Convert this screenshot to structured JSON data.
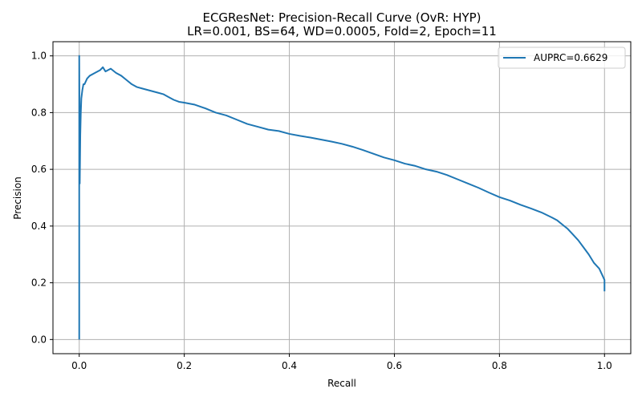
{
  "chart_data": {
    "type": "line",
    "title": "ECGResNet: Precision-Recall Curve (OvR: HYP)",
    "subtitle": "LR=0.001, BS=64, WD=0.0005, Fold=2, Epoch=11",
    "xlabel": "Recall",
    "ylabel": "Precision",
    "xlim": [
      -0.05,
      1.05
    ],
    "ylim": [
      -0.05,
      1.05
    ],
    "xticks": [
      0.0,
      0.2,
      0.4,
      0.6,
      0.8,
      1.0
    ],
    "xtick_labels": [
      "0.0",
      "0.2",
      "0.4",
      "0.6",
      "0.8",
      "1.0"
    ],
    "yticks": [
      0.0,
      0.2,
      0.4,
      0.6,
      0.8,
      1.0
    ],
    "ytick_labels": [
      "0.0",
      "0.2",
      "0.4",
      "0.6",
      "0.8",
      "1.0"
    ],
    "grid": true,
    "legend_position": "top-right",
    "series": [
      {
        "name": "AUPRC=0.6629",
        "color": "#1f77b4",
        "x": [
          0.0,
          0.0,
          0.001,
          0.002,
          0.003,
          0.004,
          0.006,
          0.008,
          0.01,
          0.015,
          0.02,
          0.03,
          0.04,
          0.045,
          0.05,
          0.06,
          0.07,
          0.08,
          0.09,
          0.1,
          0.11,
          0.12,
          0.13,
          0.14,
          0.15,
          0.16,
          0.17,
          0.18,
          0.19,
          0.2,
          0.22,
          0.24,
          0.26,
          0.28,
          0.3,
          0.32,
          0.34,
          0.36,
          0.38,
          0.4,
          0.42,
          0.44,
          0.46,
          0.48,
          0.5,
          0.52,
          0.54,
          0.56,
          0.58,
          0.6,
          0.62,
          0.64,
          0.66,
          0.68,
          0.7,
          0.72,
          0.74,
          0.76,
          0.78,
          0.8,
          0.82,
          0.84,
          0.86,
          0.88,
          0.9,
          0.91,
          0.92,
          0.93,
          0.94,
          0.95,
          0.96,
          0.97,
          0.98,
          0.99,
          0.995,
          1.0,
          1.0
        ],
        "y": [
          0.0,
          1.0,
          0.55,
          0.72,
          0.8,
          0.85,
          0.88,
          0.9,
          0.9,
          0.92,
          0.93,
          0.94,
          0.95,
          0.96,
          0.945,
          0.955,
          0.94,
          0.93,
          0.915,
          0.9,
          0.89,
          0.885,
          0.88,
          0.875,
          0.87,
          0.865,
          0.855,
          0.845,
          0.838,
          0.835,
          0.828,
          0.815,
          0.8,
          0.79,
          0.775,
          0.76,
          0.75,
          0.74,
          0.735,
          0.725,
          0.718,
          0.712,
          0.705,
          0.698,
          0.69,
          0.68,
          0.668,
          0.655,
          0.642,
          0.632,
          0.62,
          0.612,
          0.6,
          0.592,
          0.58,
          0.565,
          0.55,
          0.535,
          0.518,
          0.502,
          0.49,
          0.475,
          0.462,
          0.448,
          0.43,
          0.42,
          0.405,
          0.39,
          0.37,
          0.35,
          0.325,
          0.3,
          0.27,
          0.25,
          0.23,
          0.21,
          0.17
        ]
      }
    ]
  }
}
